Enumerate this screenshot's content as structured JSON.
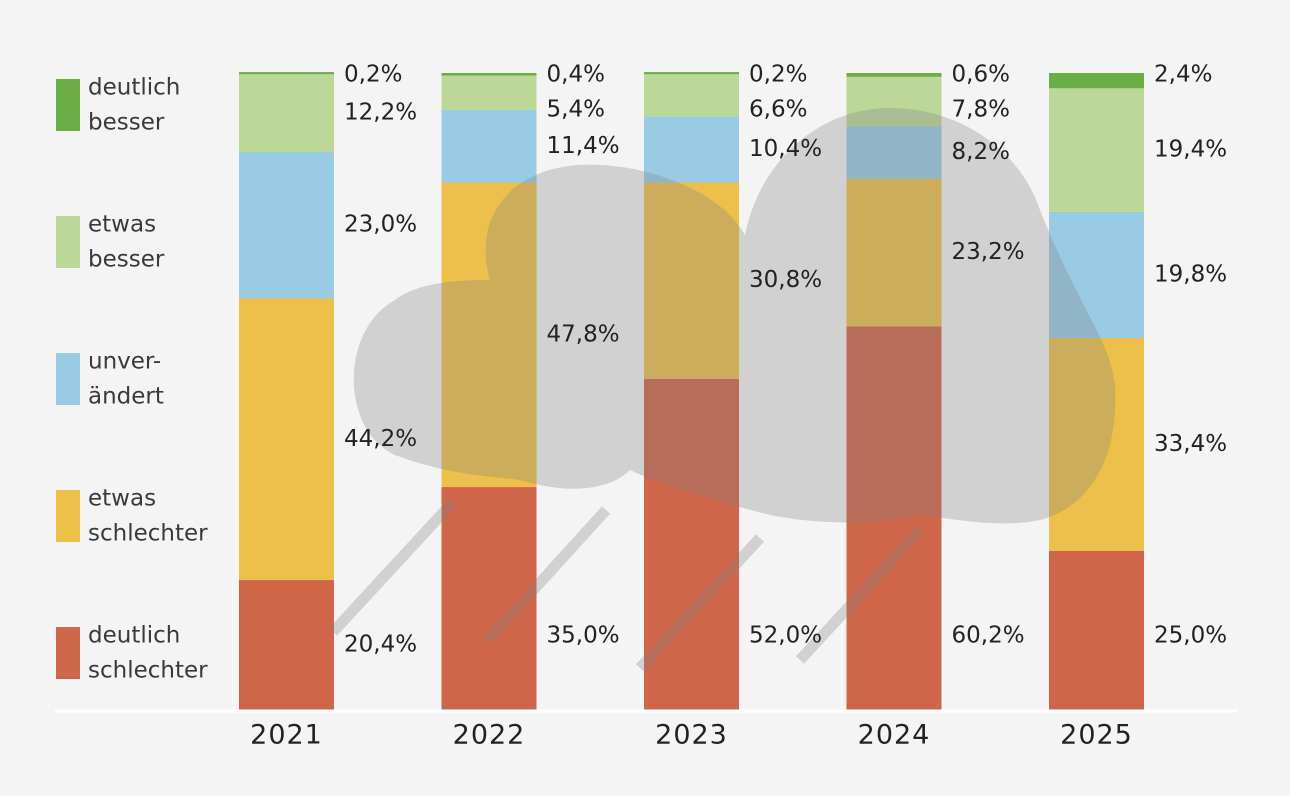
{
  "chart_data": {
    "type": "bar",
    "stacked": true,
    "categories": [
      "2021",
      "2022",
      "2023",
      "2024",
      "2025"
    ],
    "series": [
      {
        "name": "deutlich schlechter",
        "legend_lines": [
          "deutlich",
          "schlechter"
        ],
        "color": "#cf6549",
        "values": [
          20.4,
          35.0,
          52.0,
          60.2,
          25.0
        ],
        "labels": [
          "20,4%",
          "35,0%",
          "52,0%",
          "60,2%",
          "25,0%"
        ]
      },
      {
        "name": "etwas schlechter",
        "legend_lines": [
          "etwas",
          "schlechter"
        ],
        "color": "#ecc04b",
        "values": [
          44.2,
          47.8,
          30.8,
          23.2,
          33.4
        ],
        "labels": [
          "44,2%",
          "47,8%",
          "30,8%",
          "23,2%",
          "33,4%"
        ]
      },
      {
        "name": "unverändert",
        "legend_lines": [
          "unver-",
          "ändert"
        ],
        "color": "#99cbe5",
        "values": [
          23.0,
          11.4,
          10.4,
          8.2,
          19.8
        ],
        "labels": [
          "23,0%",
          "11,4%",
          "10,4%",
          "8,2%",
          "19,8%"
        ]
      },
      {
        "name": "etwas besser",
        "legend_lines": [
          "etwas",
          "besser"
        ],
        "color": "#bcd898",
        "values": [
          12.2,
          5.4,
          6.6,
          7.8,
          19.4
        ],
        "labels": [
          "12,2%",
          "5,4%",
          "6,6%",
          "7,8%",
          "19,4%"
        ]
      },
      {
        "name": "deutlich besser",
        "legend_lines": [
          "deutlich",
          "besser"
        ],
        "color": "#6aae45",
        "values": [
          0.2,
          0.4,
          0.2,
          0.6,
          2.4
        ],
        "labels": [
          "0,2%",
          "0,4%",
          "0,2%",
          "0,6%",
          "2,4%"
        ]
      }
    ],
    "legend_order": [
      "deutlich besser",
      "etwas besser",
      "unverändert",
      "etwas schlechter",
      "deutlich schlechter"
    ],
    "ylim": [
      0,
      100
    ],
    "legend_position": "left",
    "background_decoration": "rain-cloud-icon"
  }
}
